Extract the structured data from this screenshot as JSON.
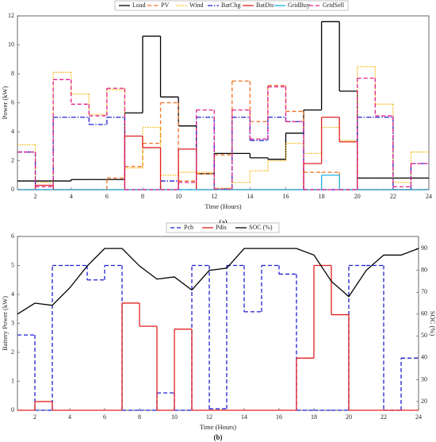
{
  "chart_data": [
    {
      "type": "step",
      "xlabel": "Time (Hours)",
      "ylabel": "Power (kW)",
      "caption": "(a)",
      "x": [
        1,
        2,
        3,
        4,
        5,
        6,
        7,
        8,
        9,
        10,
        11,
        12,
        13,
        14,
        15,
        16,
        17,
        18,
        19,
        20,
        21,
        22,
        23
      ],
      "xlim": [
        1,
        24
      ],
      "xticks": [
        2,
        4,
        6,
        8,
        10,
        12,
        14,
        16,
        18,
        20,
        22,
        24
      ],
      "ylim": [
        0,
        12
      ],
      "yticks": [
        0,
        2,
        4,
        6,
        8,
        10,
        12
      ],
      "series": [
        {
          "name": "Load",
          "color": "#000000",
          "linestyle": "solid",
          "values": [
            0.6,
            0.6,
            0.6,
            0.7,
            0.7,
            0.7,
            5.3,
            10.6,
            6.4,
            4.4,
            1.1,
            2.5,
            2.5,
            2.2,
            2.1,
            3.9,
            5.5,
            11.6,
            6.8,
            0.8,
            0.8,
            0.8,
            0.8
          ]
        },
        {
          "name": "PV",
          "color": "#f07020",
          "linestyle": "dashed",
          "values": [
            0,
            0,
            0,
            0,
            0,
            0.8,
            1.6,
            3.2,
            6.0,
            0.6,
            1.1,
            2.4,
            7.5,
            4.7,
            7.2,
            5.4,
            1.2,
            1.2,
            0,
            0,
            0,
            0,
            0
          ]
        },
        {
          "name": "Wind",
          "color": "#f2b400",
          "linestyle": "dotted",
          "values": [
            3.1,
            0.5,
            8.1,
            6.6,
            5.2,
            6.9,
            1.5,
            4.3,
            1.0,
            1.2,
            1.2,
            0.1,
            0.5,
            1.3,
            2.0,
            3.2,
            2.5,
            4.3,
            3.4,
            8.5,
            5.9,
            0.5,
            2.6
          ]
        },
        {
          "name": "BatChg",
          "color": "#1f1fd0",
          "linestyle": "dashdot",
          "values": [
            2.6,
            0,
            5.0,
            5.0,
            4.5,
            5.0,
            0,
            0,
            0.6,
            0,
            5.0,
            0.05,
            5.0,
            3.4,
            5.0,
            4.7,
            0,
            0,
            0,
            5.0,
            5.0,
            0,
            1.8
          ]
        },
        {
          "name": "BatDis",
          "color": "#e02020",
          "linestyle": "solid",
          "values": [
            0,
            0.3,
            0,
            0,
            0,
            0,
            3.7,
            2.9,
            0,
            2.8,
            0,
            0,
            0,
            0,
            0,
            0,
            1.8,
            5.0,
            3.3,
            0,
            0,
            0,
            0
          ]
        },
        {
          "name": "GridBuy",
          "color": "#20b0e0",
          "linestyle": "solid",
          "values": [
            0,
            0,
            0,
            0,
            0,
            0,
            0,
            0,
            0,
            0,
            0,
            0,
            0,
            0,
            0,
            0,
            0,
            1.0,
            0,
            0,
            0,
            0,
            0
          ]
        },
        {
          "name": "GridSell",
          "color": "#e0208a",
          "linestyle": "dashed",
          "values": [
            2.6,
            0.2,
            7.6,
            5.9,
            5.1,
            7.0,
            0,
            0,
            0,
            0.5,
            5.5,
            0.05,
            5.5,
            3.5,
            7.1,
            4.7,
            0,
            0,
            0,
            7.7,
            5.1,
            0.2,
            1.8
          ]
        }
      ]
    },
    {
      "type": "step",
      "xlabel": "Time (Hours)",
      "ylabel": "Battery Power (kW)",
      "y2label": "SOC (%)",
      "caption": "(b)",
      "x": [
        1,
        2,
        3,
        4,
        5,
        6,
        7,
        8,
        9,
        10,
        11,
        12,
        13,
        14,
        15,
        16,
        17,
        18,
        19,
        20,
        21,
        22,
        23
      ],
      "xlim": [
        1,
        24
      ],
      "xticks": [
        2,
        4,
        6,
        8,
        10,
        12,
        14,
        16,
        18,
        20,
        22,
        24
      ],
      "ylim": [
        0,
        6
      ],
      "yticks": [
        0,
        1,
        2,
        3,
        4,
        5,
        6
      ],
      "y2lim": [
        16,
        95.5
      ],
      "y2ticks": [
        20,
        30,
        40,
        50,
        60,
        70,
        80,
        90
      ],
      "series": [
        {
          "name": "Pch",
          "color": "#1f1fd0",
          "linestyle": "dashed",
          "values": [
            2.6,
            0,
            5.0,
            5.0,
            4.5,
            5.0,
            0,
            0,
            0.6,
            0,
            5.0,
            0.05,
            5.0,
            3.4,
            5.0,
            4.7,
            0,
            0,
            0,
            5.0,
            5.0,
            0,
            1.8
          ]
        },
        {
          "name": "Pdis",
          "color": "#e02020",
          "linestyle": "solid",
          "values": [
            0,
            0.3,
            0,
            0,
            0,
            0,
            3.7,
            2.9,
            0,
            2.8,
            0,
            0,
            0,
            0,
            0,
            0,
            1.8,
            5.0,
            3.3,
            0,
            0,
            0,
            0
          ]
        },
        {
          "name": "SOC (%)",
          "color": "#000000",
          "linestyle": "solid",
          "axis": "y2",
          "kind": "line",
          "x": [
            1,
            2,
            3,
            4,
            5,
            6,
            7,
            8,
            9,
            10,
            11,
            12,
            13,
            14,
            15,
            16,
            17,
            18,
            19,
            20,
            21,
            22,
            23,
            24
          ],
          "values": [
            60,
            65,
            64,
            72,
            82,
            90,
            90,
            82,
            76,
            77,
            71,
            80,
            81,
            90,
            90,
            90,
            90,
            87,
            75,
            68,
            80,
            87,
            87,
            90
          ]
        }
      ]
    }
  ]
}
